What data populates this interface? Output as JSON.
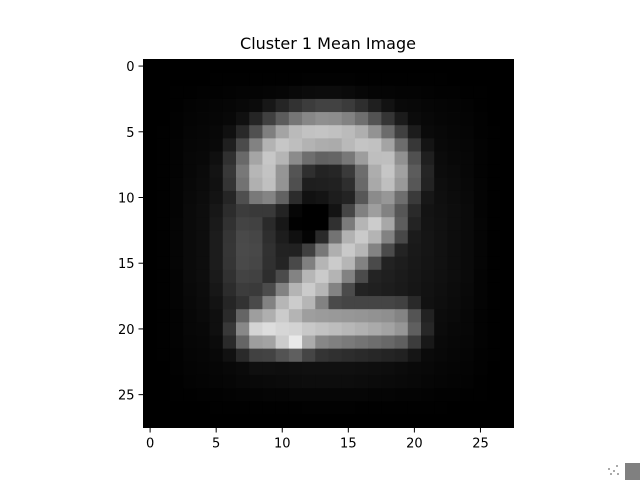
{
  "chart_data": {
    "type": "heatmap",
    "title": "Cluster 1 Mean Image",
    "xlabel": "",
    "ylabel": "",
    "colormap": "gray",
    "shape": [
      28,
      28
    ],
    "xlim": [
      -0.5,
      27.5
    ],
    "ylim": [
      27.5,
      -0.5
    ],
    "x_ticks": [
      0,
      5,
      10,
      15,
      20,
      25
    ],
    "y_ticks": [
      0,
      5,
      10,
      15,
      20,
      25
    ],
    "grid": false,
    "legend": "none"
  },
  "colors": {
    "background": "#ffffff",
    "axes_frame": "#000000",
    "text": "#000000"
  }
}
